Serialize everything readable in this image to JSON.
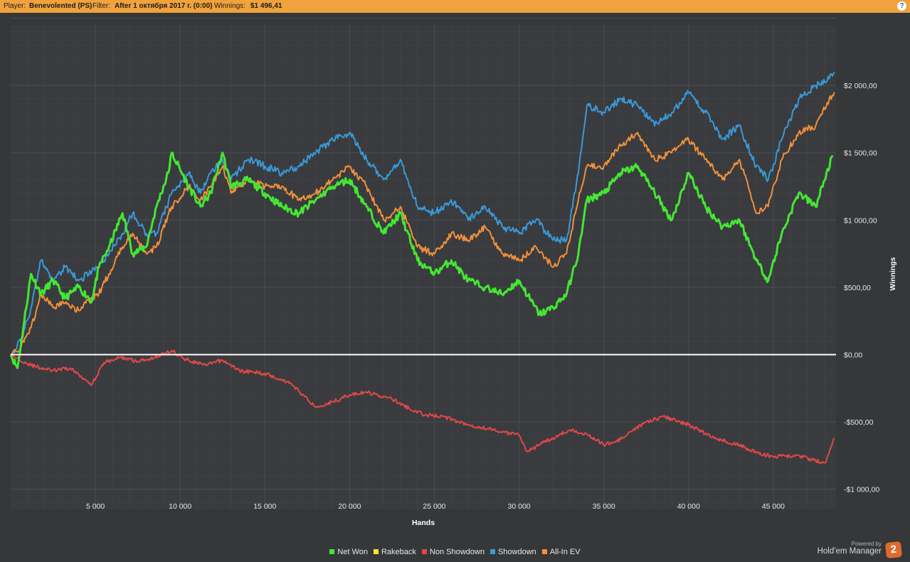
{
  "header": {
    "player_label": "Player:",
    "player_value": "Benevolented (PS)",
    "filter_label": "Filter:",
    "filter_value": "After 1 октября 2017 г. (0:00)",
    "winnings_label": "Winnings:",
    "winnings_value": "$1 496,41",
    "help_label": "?"
  },
  "footer": {
    "powered_by": "Powered by",
    "brand": "Hold'em Manager",
    "brand_logo_text": "2"
  },
  "chart_data": {
    "type": "line",
    "xlabel": "Hands",
    "ylabel": "Winnings",
    "xlim": [
      0,
      48700
    ],
    "ylim": [
      -1150,
      2450
    ],
    "x_ticks": [
      5000,
      10000,
      15000,
      20000,
      25000,
      30000,
      35000,
      40000,
      45000
    ],
    "x_tick_labels": [
      "5 000",
      "10 000",
      "15 000",
      "20 000",
      "25 000",
      "30 000",
      "35 000",
      "40 000",
      "45 000"
    ],
    "y_ticks": [
      2000,
      1500,
      1000,
      500,
      0,
      -500,
      -1000
    ],
    "y_tick_labels": [
      "$2 000,00",
      "$1 500,00",
      "$1 000,00",
      "$500,00",
      "$0,00",
      "-$500,00",
      "-$1 000,00"
    ],
    "grid": true,
    "legend_position": "bottom",
    "colors": {
      "background": "#353739",
      "grid": "#4a4d50",
      "zero_line": "#ffffff"
    },
    "series": [
      {
        "name": "Net Won",
        "color": "#44e633",
        "x": [
          0,
          400,
          800,
          1200,
          1800,
          2500,
          3200,
          4000,
          4800,
          5200,
          5800,
          6600,
          7200,
          8000,
          8600,
          9300,
          9500,
          10500,
          11200,
          11800,
          12500,
          13000,
          14000,
          15000,
          16000,
          17000,
          18000,
          19000,
          20000,
          21000,
          22000,
          23000,
          24000,
          25000,
          26000,
          27000,
          28000,
          29000,
          30000,
          30700,
          31200,
          32000,
          32800,
          33500,
          34000,
          35000,
          36000,
          37000,
          38000,
          39000,
          40000,
          41000,
          42000,
          43000,
          44000,
          44700,
          45500,
          46500,
          47500,
          48500
        ],
        "values": [
          0,
          -100,
          250,
          600,
          450,
          550,
          420,
          500,
          400,
          650,
          800,
          1050,
          750,
          800,
          1100,
          1350,
          1500,
          1250,
          1100,
          1200,
          1500,
          1250,
          1300,
          1200,
          1100,
          1050,
          1150,
          1250,
          1300,
          1100,
          900,
          1050,
          700,
          600,
          700,
          550,
          500,
          450,
          550,
          400,
          300,
          350,
          450,
          750,
          1150,
          1200,
          1350,
          1400,
          1200,
          1000,
          1350,
          1100,
          950,
          1000,
          700,
          550,
          900,
          1200,
          1100,
          1480
        ]
      },
      {
        "name": "Rakeback",
        "color": "#f3e236",
        "x": [
          0,
          48500
        ],
        "values": [
          0,
          0
        ]
      },
      {
        "name": "Non Showdown",
        "color": "#e04848",
        "x": [
          0,
          1200,
          2500,
          3500,
          4800,
          5500,
          6500,
          7500,
          8500,
          9500,
          10200,
          11500,
          12500,
          13500,
          15000,
          16500,
          18000,
          19000,
          20000,
          21000,
          22500,
          23500,
          24500,
          25500,
          27000,
          28500,
          30000,
          30500,
          31500,
          33000,
          34000,
          35000,
          36000,
          37500,
          38500,
          40000,
          41500,
          43000,
          44000,
          45000,
          46500,
          47500,
          48100,
          48600
        ],
        "values": [
          0,
          -80,
          -120,
          -100,
          -220,
          -60,
          -20,
          -50,
          -20,
          30,
          -30,
          -80,
          -40,
          -120,
          -140,
          -210,
          -390,
          -350,
          -300,
          -280,
          -330,
          -400,
          -450,
          -460,
          -520,
          -560,
          -600,
          -720,
          -650,
          -560,
          -590,
          -670,
          -630,
          -500,
          -460,
          -520,
          -620,
          -670,
          -730,
          -760,
          -750,
          -790,
          -800,
          -620
        ]
      },
      {
        "name": "Showdown",
        "color": "#3a99d8",
        "x": [
          0,
          600,
          1200,
          1800,
          2500,
          3200,
          4000,
          4800,
          5200,
          5800,
          6600,
          7200,
          8000,
          8600,
          9500,
          10500,
          11200,
          11800,
          12500,
          13000,
          14000,
          15000,
          16000,
          17000,
          18000,
          19000,
          20000,
          21000,
          22000,
          23000,
          24000,
          25000,
          26000,
          27000,
          28000,
          29000,
          30000,
          31000,
          32000,
          32800,
          33500,
          34000,
          35000,
          36000,
          37000,
          38000,
          39000,
          40000,
          41000,
          42000,
          43000,
          44000,
          44700,
          45500,
          46500,
          47500,
          48300,
          48600
        ],
        "values": [
          0,
          100,
          350,
          700,
          550,
          650,
          550,
          620,
          650,
          750,
          900,
          1050,
          900,
          900,
          1200,
          1350,
          1200,
          1350,
          1450,
          1300,
          1450,
          1400,
          1350,
          1400,
          1500,
          1600,
          1650,
          1450,
          1300,
          1450,
          1100,
          1050,
          1150,
          1000,
          1100,
          950,
          900,
          1000,
          850,
          850,
          1350,
          1850,
          1800,
          1900,
          1850,
          1700,
          1800,
          1950,
          1800,
          1600,
          1700,
          1400,
          1300,
          1600,
          1900,
          2000,
          2050,
          2100
        ]
      },
      {
        "name": "All-In EV",
        "color": "#f2903a",
        "x": [
          0,
          600,
          1200,
          1800,
          2500,
          3200,
          4000,
          4800,
          5200,
          5800,
          6600,
          7200,
          8000,
          8600,
          9500,
          10500,
          11200,
          11800,
          12500,
          13000,
          14000,
          15000,
          16000,
          17000,
          18000,
          19000,
          20000,
          21000,
          22000,
          23000,
          24000,
          25000,
          26000,
          27000,
          28000,
          29000,
          30000,
          31000,
          32000,
          32800,
          33500,
          34000,
          35000,
          36000,
          37000,
          38000,
          39000,
          40000,
          41000,
          42000,
          43000,
          44000,
          44700,
          45500,
          46500,
          47500,
          48300,
          48600
        ],
        "values": [
          0,
          50,
          200,
          450,
          350,
          380,
          330,
          420,
          450,
          600,
          800,
          900,
          750,
          800,
          1100,
          1250,
          1150,
          1250,
          1400,
          1200,
          1300,
          1250,
          1250,
          1150,
          1200,
          1300,
          1400,
          1250,
          1000,
          1100,
          800,
          750,
          900,
          850,
          950,
          750,
          700,
          800,
          650,
          750,
          1150,
          1400,
          1400,
          1550,
          1650,
          1450,
          1500,
          1600,
          1450,
          1300,
          1450,
          1050,
          1100,
          1450,
          1650,
          1700,
          1900,
          1950
        ]
      }
    ]
  }
}
